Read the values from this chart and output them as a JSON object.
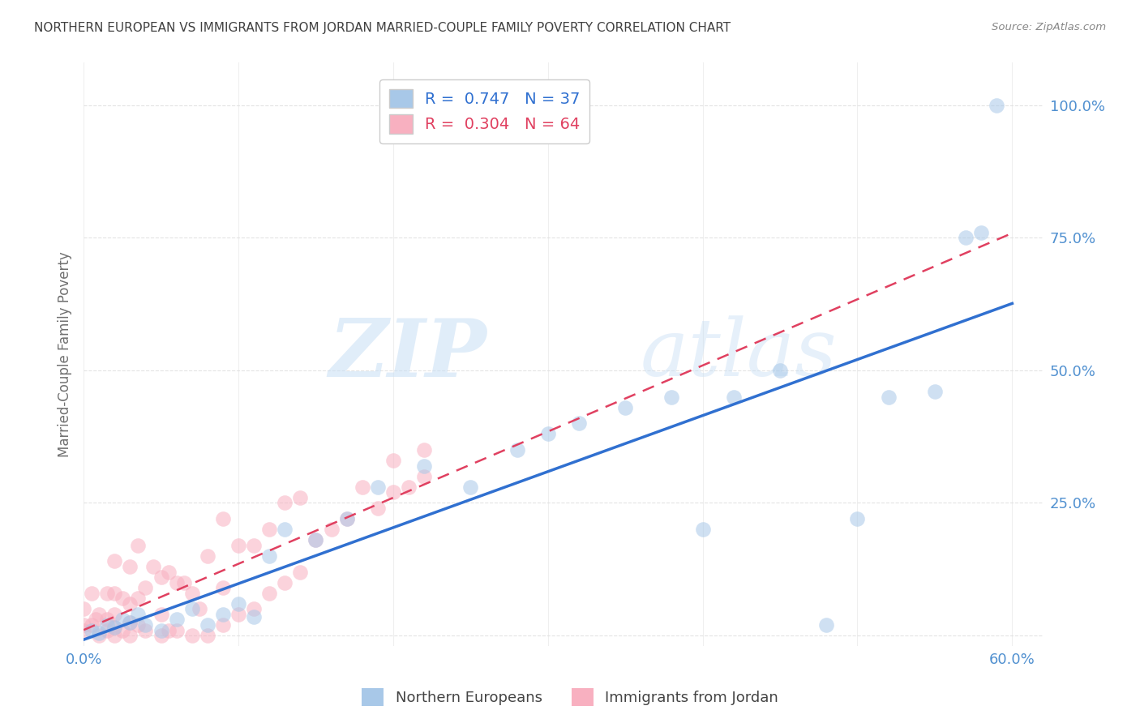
{
  "title": "NORTHERN EUROPEAN VS IMMIGRANTS FROM JORDAN MARRIED-COUPLE FAMILY POVERTY CORRELATION CHART",
  "source": "Source: ZipAtlas.com",
  "ylabel": "Married-Couple Family Poverty",
  "xlim": [
    0.0,
    0.62
  ],
  "ylim": [
    -0.02,
    1.08
  ],
  "xticks": [
    0.0,
    0.1,
    0.2,
    0.3,
    0.4,
    0.5,
    0.6
  ],
  "xticklabels": [
    "0.0%",
    "",
    "",
    "",
    "",
    "",
    "60.0%"
  ],
  "yticks": [
    0.0,
    0.25,
    0.5,
    0.75,
    1.0
  ],
  "yticklabels": [
    "",
    "25.0%",
    "50.0%",
    "75.0%",
    "100.0%"
  ],
  "blue_R": 0.747,
  "blue_N": 37,
  "pink_R": 0.304,
  "pink_N": 64,
  "blue_color": "#a8c8e8",
  "pink_color": "#f8b0c0",
  "blue_line_color": "#3070d0",
  "pink_line_color": "#e04060",
  "watermark_zip": "ZIP",
  "watermark_atlas": "atlas",
  "background_color": "#ffffff",
  "grid_color": "#e0e0e0",
  "tick_label_color": "#5090d0",
  "title_color": "#404040",
  "axis_label_color": "#707070",
  "blue_scatter_x": [
    0.005,
    0.01,
    0.015,
    0.02,
    0.025,
    0.03,
    0.035,
    0.04,
    0.05,
    0.06,
    0.07,
    0.08,
    0.09,
    0.1,
    0.11,
    0.12,
    0.13,
    0.15,
    0.17,
    0.19,
    0.22,
    0.25,
    0.28,
    0.3,
    0.32,
    0.35,
    0.38,
    0.4,
    0.42,
    0.45,
    0.48,
    0.5,
    0.52,
    0.55,
    0.57,
    0.58,
    0.59
  ],
  "blue_scatter_y": [
    0.01,
    0.005,
    0.02,
    0.015,
    0.03,
    0.025,
    0.04,
    0.02,
    0.01,
    0.03,
    0.05,
    0.02,
    0.04,
    0.06,
    0.035,
    0.15,
    0.2,
    0.18,
    0.22,
    0.28,
    0.32,
    0.28,
    0.35,
    0.38,
    0.4,
    0.43,
    0.45,
    0.2,
    0.45,
    0.5,
    0.02,
    0.22,
    0.45,
    0.46,
    0.75,
    0.76,
    1.0
  ],
  "pink_scatter_x": [
    0.0,
    0.0,
    0.0,
    0.005,
    0.005,
    0.008,
    0.01,
    0.01,
    0.015,
    0.015,
    0.015,
    0.02,
    0.02,
    0.02,
    0.02,
    0.02,
    0.025,
    0.025,
    0.03,
    0.03,
    0.03,
    0.03,
    0.035,
    0.035,
    0.035,
    0.04,
    0.04,
    0.045,
    0.05,
    0.05,
    0.05,
    0.055,
    0.055,
    0.06,
    0.06,
    0.065,
    0.07,
    0.07,
    0.075,
    0.08,
    0.08,
    0.09,
    0.09,
    0.09,
    0.1,
    0.1,
    0.11,
    0.11,
    0.12,
    0.12,
    0.13,
    0.13,
    0.14,
    0.14,
    0.15,
    0.16,
    0.17,
    0.18,
    0.19,
    0.2,
    0.2,
    0.21,
    0.22,
    0.22
  ],
  "pink_scatter_y": [
    0.01,
    0.02,
    0.05,
    0.02,
    0.08,
    0.03,
    0.0,
    0.04,
    0.01,
    0.03,
    0.08,
    0.0,
    0.015,
    0.04,
    0.08,
    0.14,
    0.01,
    0.07,
    0.0,
    0.025,
    0.06,
    0.13,
    0.02,
    0.07,
    0.17,
    0.01,
    0.09,
    0.13,
    0.0,
    0.04,
    0.11,
    0.01,
    0.12,
    0.01,
    0.1,
    0.1,
    0.0,
    0.08,
    0.05,
    0.0,
    0.15,
    0.02,
    0.09,
    0.22,
    0.04,
    0.17,
    0.05,
    0.17,
    0.08,
    0.2,
    0.1,
    0.25,
    0.12,
    0.26,
    0.18,
    0.2,
    0.22,
    0.28,
    0.24,
    0.27,
    0.33,
    0.28,
    0.3,
    0.35
  ]
}
